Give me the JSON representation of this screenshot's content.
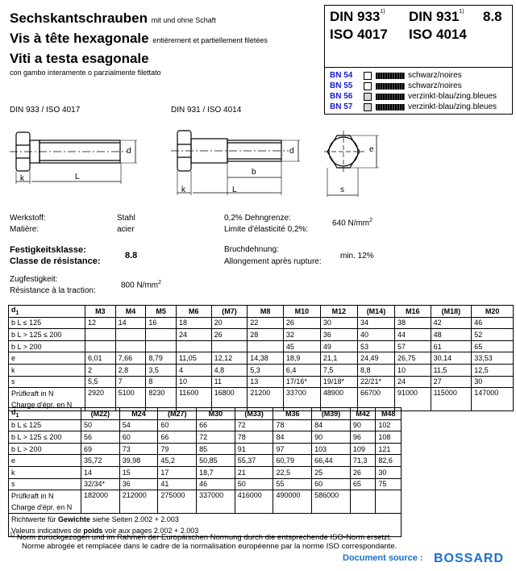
{
  "header": {
    "title_de": "Sechskantschrauben",
    "sub_de": "mit und ohne Schaft",
    "title_fr": "Vis à tête hexagonale",
    "sub_fr": "entièrement et partiellement filetées",
    "title_it": "Viti a testa esagonale",
    "sub_it": "con gambo interamente o parzialmente filettato"
  },
  "standards": {
    "din933": "DIN 933",
    "din931": "DIN 931",
    "fn": "1)",
    "grade": "8.8",
    "iso4017": "ISO 4017",
    "iso4014": "ISO 4014"
  },
  "bn": [
    {
      "code": "BN 54",
      "finish": "schwarz/noires",
      "box": "#ffffff"
    },
    {
      "code": "BN 55",
      "finish": "schwarz/noires",
      "box": "#ffffff"
    },
    {
      "code": "BN 56",
      "finish": "verzinkt-blau/zing.bleues",
      "box": "#d4d4d4"
    },
    {
      "code": "BN 57",
      "finish": "verzinkt-blau/zing.bleues",
      "box": "#d4d4d4"
    }
  ],
  "drawings": {
    "left_title": "DIN 933 / ISO 4017",
    "right_title": "DIN 931 / ISO 4014",
    "k": "k",
    "L": "L",
    "b": "b",
    "d": "d",
    "d_sub": "1",
    "e": "e",
    "s": "s"
  },
  "specs": {
    "werkstoff": "Werkstoff:",
    "matiere": "Matière:",
    "stahl": "Stahl",
    "acier": "acier",
    "dehn": "0,2% Dehngrenze:",
    "limite": "Limite d'élasticité 0,2%:",
    "dehn_val": "640 N/mm",
    "sq": "2",
    "fest": "Festigkeitsklasse:",
    "classe": "Classe de résistance:",
    "fest_val": "8.8",
    "bruch": "Bruchdehnung:",
    "allong": "Allongement après rupture:",
    "bruch_val": "min. 12%",
    "zug": "Zugfestigkeit:",
    "resist": "Résistance à la traction:",
    "zug_val": "800 N/mm"
  },
  "table1": {
    "head": [
      "M3",
      "M4",
      "M5",
      "M6",
      "(M7)",
      "M8",
      "M10",
      "M12",
      "(M14)",
      "M16",
      "(M18)",
      "M20"
    ],
    "rows": [
      {
        "label": "b L ≤ 125",
        "values": [
          "12",
          "14",
          "16",
          "18",
          "20",
          "22",
          "26",
          "30",
          "34",
          "38",
          "42",
          "46"
        ]
      },
      {
        "label": "b L > 125 ≤ 200",
        "values": [
          "",
          "",
          "",
          "24",
          "26",
          "28",
          "32",
          "36",
          "40",
          "44",
          "48",
          "52"
        ]
      },
      {
        "label": "b L > 200",
        "values": [
          "",
          "",
          "",
          "",
          "",
          "",
          "45",
          "49",
          "53",
          "57",
          "61",
          "65"
        ]
      },
      {
        "label": "e",
        "values": [
          "6,01",
          "7,66",
          "8,79",
          "11,05",
          "12,12",
          "14,38",
          "18,9",
          "21,1",
          "24,49",
          "26,75",
          "30,14",
          "33,53"
        ]
      },
      {
        "label": "k",
        "values": [
          "2",
          "2,8",
          "3,5",
          "4",
          "4,8",
          "5,3",
          "6,4",
          "7,5",
          "8,8",
          "10",
          "11,5",
          "12,5"
        ]
      },
      {
        "label": "s",
        "values": [
          "5,5",
          "7",
          "8",
          "10",
          "11",
          "13",
          "17/16*",
          "19/18*",
          "22/21*",
          "24",
          "27",
          "30"
        ]
      },
      {
        "label": "Prüfkraft in N",
        "label2": "Charge d'épr. en N",
        "values": [
          "2920",
          "5100",
          "8230",
          "11600",
          "16800",
          "21200",
          "33700",
          "48900",
          "66700",
          "91000",
          "115000",
          "147000"
        ]
      }
    ]
  },
  "table2": {
    "head": [
      "(M22)",
      "M24",
      "(M27)",
      "M30",
      "(M33)",
      "M36",
      "(M39)",
      "M42",
      "M48"
    ],
    "rows": [
      {
        "label": "b L ≤ 125",
        "values": [
          "50",
          "54",
          "60",
          "66",
          "72",
          "78",
          "84",
          "90",
          "102"
        ]
      },
      {
        "label": "b L > 125 ≤ 200",
        "values": [
          "56",
          "60",
          "66",
          "72",
          "78",
          "84",
          "90",
          "96",
          "108"
        ]
      },
      {
        "label": "b L > 200",
        "values": [
          "69",
          "73",
          "79",
          "85",
          "91",
          "97",
          "103",
          "109",
          "121"
        ]
      },
      {
        "label": "e",
        "values": [
          "35,72",
          "39,98",
          "45,2",
          "50,85",
          "55,37",
          "60,79",
          "66,44",
          "71,3",
          "82,6"
        ]
      },
      {
        "label": "k",
        "values": [
          "14",
          "15",
          "17",
          "18,7",
          "21",
          "22,5",
          "25",
          "26",
          "30"
        ]
      },
      {
        "label": "s",
        "values": [
          "32/34*",
          "36",
          "41",
          "46",
          "50",
          "55",
          "60",
          "65",
          "75"
        ]
      },
      {
        "label": "Prüfkraft in N",
        "label2": "Charge d'épr. en N",
        "values": [
          "182000",
          "212000",
          "275000",
          "337000",
          "416000",
          "490000",
          "586000",
          "",
          ""
        ]
      }
    ],
    "note_de_a": "Richtwerte für ",
    "note_de_b": "Gewichte",
    "note_de_c": " siehe Seiten 2.002 + 2.003",
    "note_fr_a": "Valeurs indicatives de ",
    "note_fr_b": "poids",
    "note_fr_c": " voir aux pages 2.002 + 2.003"
  },
  "d1": "d",
  "d1sub": "1",
  "footnote": {
    "mark": "1)",
    "de": "Norm zurückgezogen und im Rahmen der Europäischen Normung durch die entsprechende ISO-Norm ersetzt.",
    "fr": "Norme abrogée et remplacée dans le cadre de la normalisation européenne par la norme ISO correspondante."
  },
  "source": {
    "label": "Document source :",
    "brand": "BOSSARD",
    "color": "#1a6fd0"
  }
}
